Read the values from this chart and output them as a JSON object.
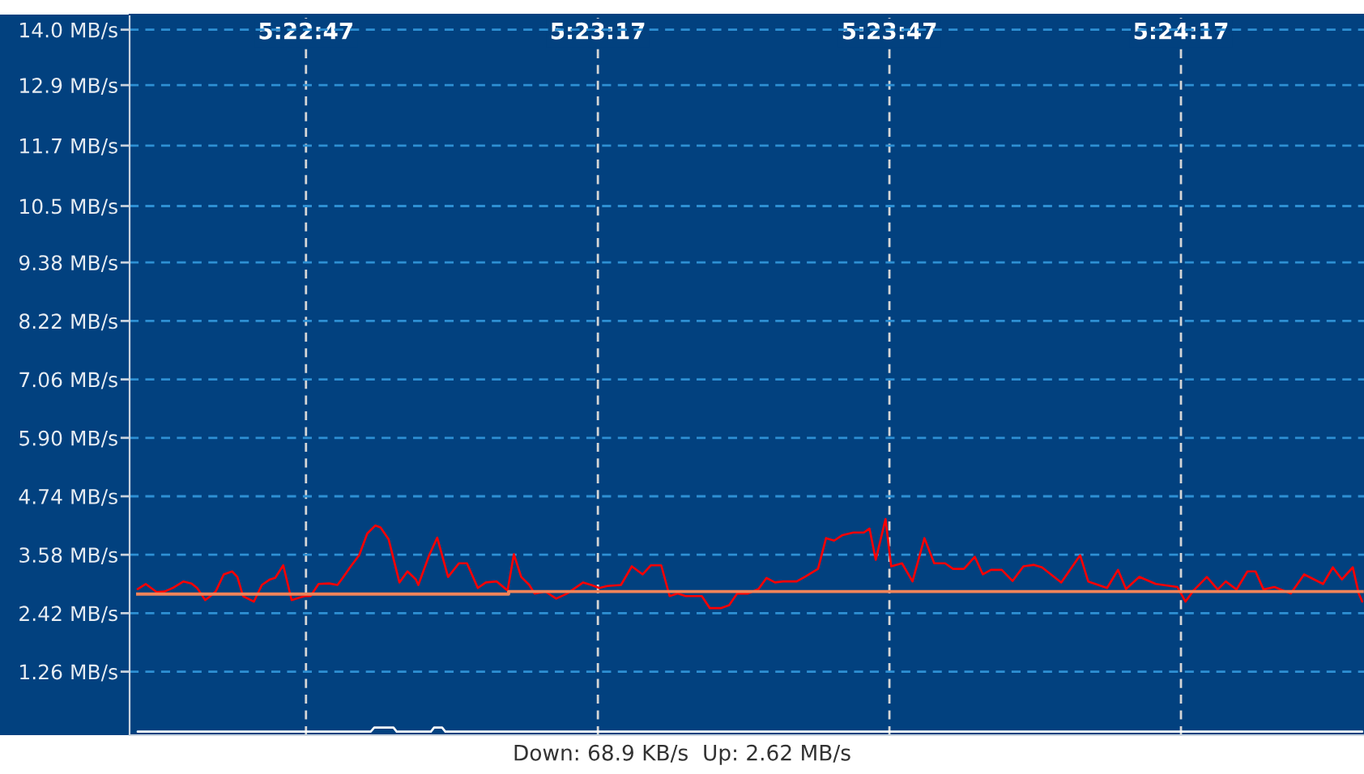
{
  "chart_data": {
    "type": "line",
    "annotations": [
      "Down: 68.9 KB/s  Up: 2.62 MB/s"
    ],
    "xlim": [
      5.37468,
      5.40995
    ],
    "xticks": [
      {
        "value": 5.37972,
        "label": "5:22:47"
      },
      {
        "value": 5.38806,
        "label": "5:23:17"
      },
      {
        "value": 5.39639,
        "label": "5:23:47"
      },
      {
        "value": 5.40472,
        "label": "5:24:17"
      }
    ],
    "ylim": [
      0,
      14.3
    ],
    "yticks": [
      {
        "value": 1.26,
        "label": "1.26 MB/s"
      },
      {
        "value": 2.42,
        "label": "2.42 MB/s"
      },
      {
        "value": 3.58,
        "label": "3.58 MB/s"
      },
      {
        "value": 4.74,
        "label": "4.74 MB/s"
      },
      {
        "value": 5.9,
        "label": "5.90 MB/s"
      },
      {
        "value": 7.06,
        "label": "7.06 MB/s"
      },
      {
        "value": 8.22,
        "label": "8.22 MB/s"
      },
      {
        "value": 9.38,
        "label": "9.38 MB/s"
      },
      {
        "value": 10.5,
        "label": "10.5 MB/s"
      },
      {
        "value": 11.7,
        "label": "11.7 MB/s"
      },
      {
        "value": 12.9,
        "label": "12.9 MB/s"
      },
      {
        "value": 14.0,
        "label": "14.0 MB/s"
      }
    ],
    "grid": true,
    "series": [
      {
        "color": "#ff0000",
        "x": [
          5.37491,
          5.37514,
          5.37545,
          5.37568,
          5.37591,
          5.37622,
          5.37645,
          5.37661,
          5.37684,
          5.37699,
          5.37714,
          5.37737,
          5.37761,
          5.37776,
          5.37792,
          5.37823,
          5.37846,
          5.37869,
          5.37884,
          5.37907,
          5.37931,
          5.37954,
          5.37969,
          5.37985,
          5.38008,
          5.38038,
          5.38062,
          5.38077,
          5.381,
          5.38124,
          5.38147,
          5.3817,
          5.38185,
          5.38208,
          5.38239,
          5.38262,
          5.38286,
          5.38293,
          5.38324,
          5.38347,
          5.38378,
          5.38409,
          5.38432,
          5.38463,
          5.38486,
          5.38517,
          5.38548,
          5.38566,
          5.38587,
          5.3861,
          5.38625,
          5.38656,
          5.38687,
          5.38718,
          5.38764,
          5.38787,
          5.3881,
          5.38833,
          5.38872,
          5.38903,
          5.38934,
          5.38957,
          5.38987,
          5.39011,
          5.39034,
          5.39057,
          5.39103,
          5.39126,
          5.39157,
          5.39181,
          5.39204,
          5.39235,
          5.39265,
          5.39288,
          5.39312,
          5.39335,
          5.39374,
          5.39397,
          5.39435,
          5.39458,
          5.39481,
          5.39505,
          5.39536,
          5.39566,
          5.39582,
          5.396,
          5.39628,
          5.39644,
          5.39675,
          5.39705,
          5.39739,
          5.39767,
          5.39798,
          5.39821,
          5.39852,
          5.39883,
          5.39906,
          5.39929,
          5.3996,
          5.39991,
          5.40022,
          5.40052,
          5.40075,
          5.4013,
          5.40184,
          5.40207,
          5.40261,
          5.40292,
          5.40315,
          5.40353,
          5.404,
          5.40462,
          5.40485,
          5.40508,
          5.40546,
          5.40577,
          5.406,
          5.40631,
          5.40662,
          5.40685,
          5.40708,
          5.40739,
          5.40786,
          5.40824,
          5.40878,
          5.40906,
          5.40932,
          5.40963,
          5.4098,
          5.4099
        ],
        "values": [
          2.9,
          3.0,
          2.84,
          2.85,
          2.92,
          3.05,
          3.01,
          2.92,
          2.68,
          2.76,
          2.85,
          3.19,
          3.25,
          3.14,
          2.76,
          2.65,
          2.98,
          3.09,
          3.12,
          3.37,
          2.68,
          2.73,
          2.76,
          2.76,
          3.0,
          3.01,
          2.98,
          3.12,
          3.35,
          3.57,
          4.0,
          4.16,
          4.12,
          3.89,
          3.03,
          3.25,
          3.09,
          2.98,
          3.57,
          3.92,
          3.14,
          3.41,
          3.41,
          2.92,
          3.03,
          3.05,
          2.87,
          3.59,
          3.14,
          2.98,
          2.81,
          2.85,
          2.71,
          2.81,
          3.03,
          2.98,
          2.92,
          2.96,
          2.98,
          3.35,
          3.19,
          3.37,
          3.37,
          2.76,
          2.81,
          2.76,
          2.76,
          2.52,
          2.52,
          2.58,
          2.81,
          2.81,
          2.9,
          3.12,
          3.03,
          3.05,
          3.05,
          3.14,
          3.3,
          3.91,
          3.86,
          3.97,
          4.02,
          4.02,
          4.1,
          3.48,
          4.29,
          3.35,
          3.41,
          3.05,
          3.91,
          3.41,
          3.41,
          3.3,
          3.3,
          3.54,
          3.19,
          3.28,
          3.28,
          3.06,
          3.35,
          3.38,
          3.33,
          3.03,
          3.57,
          3.05,
          2.92,
          3.28,
          2.9,
          3.14,
          3.0,
          2.94,
          2.65,
          2.87,
          3.14,
          2.89,
          3.05,
          2.89,
          3.25,
          3.25,
          2.89,
          2.94,
          2.81,
          3.19,
          3.0,
          3.33,
          3.09,
          3.33,
          2.81,
          2.65
        ]
      },
      {
        "type": "step",
        "color": "#f0845a",
        "x": [
          5.37491,
          5.38551,
          5.4099
        ],
        "values": [
          2.8,
          2.85,
          2.85
        ]
      },
      {
        "color": "#ffffff",
        "x": [
          5.37491,
          5.38157,
          5.38167,
          5.38222,
          5.38231,
          5.38329,
          5.38338,
          5.38361,
          5.3837,
          5.4099
        ],
        "values": [
          0.07,
          0.07,
          0.15,
          0.15,
          0.07,
          0.07,
          0.15,
          0.15,
          0.07,
          0.07
        ]
      }
    ]
  }
}
